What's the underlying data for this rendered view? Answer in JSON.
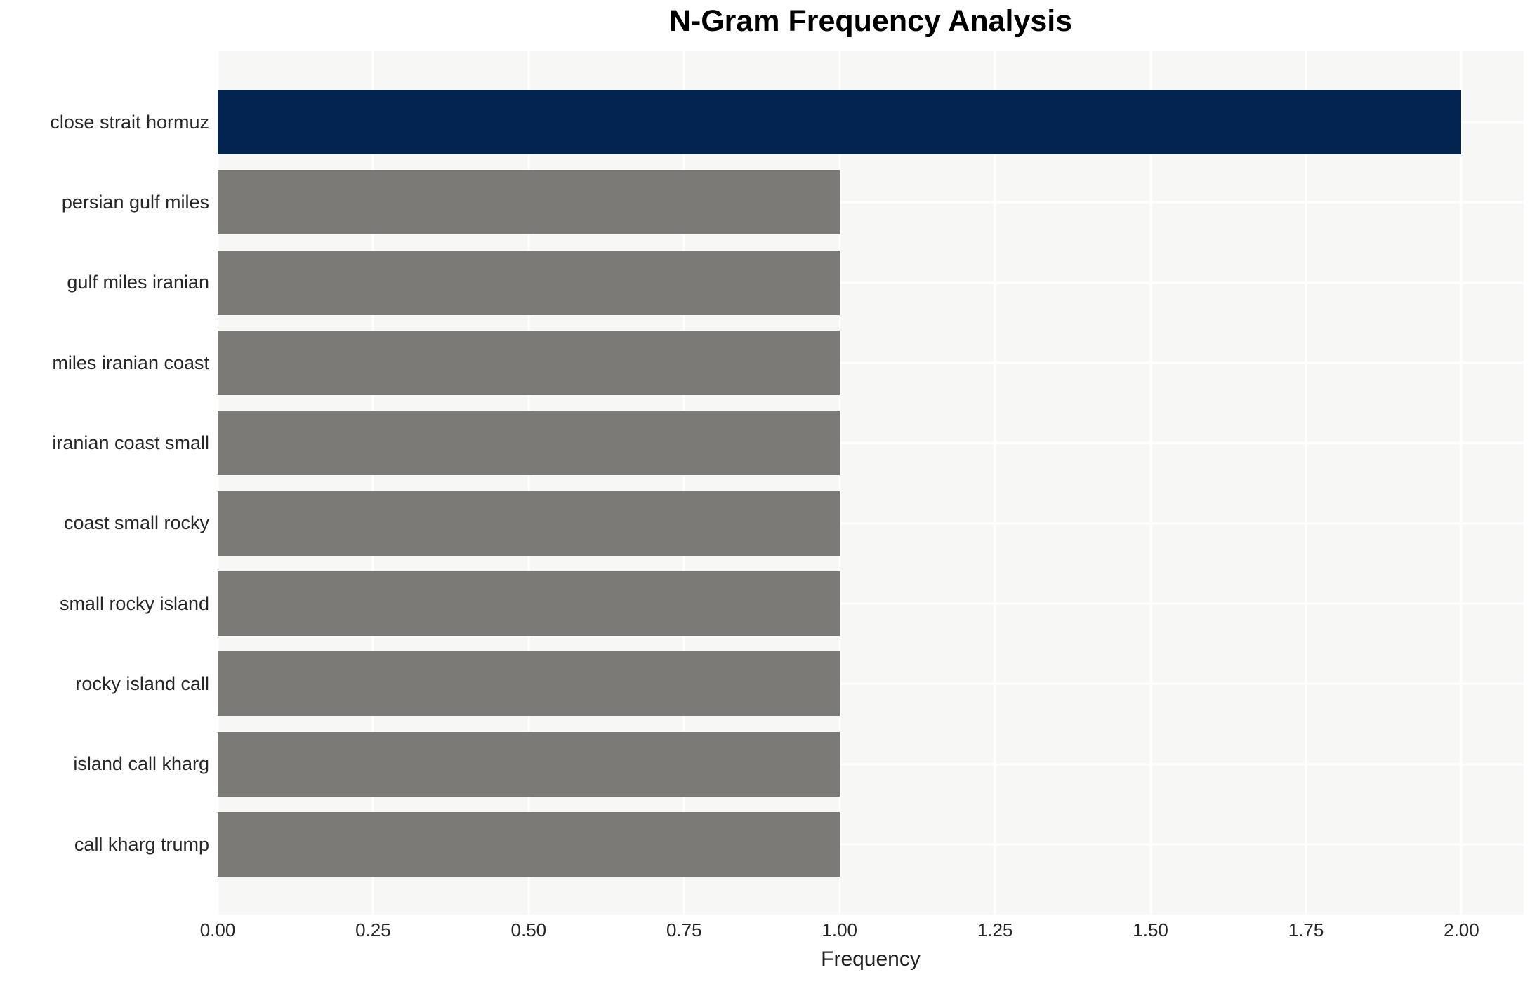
{
  "chart_data": {
    "type": "bar",
    "orientation": "horizontal",
    "title": "N-Gram Frequency Analysis",
    "xlabel": "Frequency",
    "ylabel": "",
    "categories": [
      "close strait hormuz",
      "persian gulf miles",
      "gulf miles iranian",
      "miles iranian coast",
      "iranian coast small",
      "coast small rocky",
      "small rocky island",
      "rocky island call",
      "island call kharg",
      "call kharg trump"
    ],
    "values": [
      2,
      1,
      1,
      1,
      1,
      1,
      1,
      1,
      1,
      1
    ],
    "bar_colors": [
      "#02244e",
      "#7b7a76",
      "#7b7a76",
      "#7b7a76",
      "#7b7a76",
      "#7b7a76",
      "#7b7a76",
      "#7b7a76",
      "#7b7a76",
      "#7b7a76"
    ],
    "xlim": [
      0,
      2.1
    ],
    "x_tick_values": [
      0,
      0.25,
      0.5,
      0.75,
      1.0,
      1.25,
      1.5,
      1.75,
      2.0
    ],
    "x_tick_labels": [
      "0.00",
      "0.25",
      "0.50",
      "0.75",
      "1.00",
      "1.25",
      "1.50",
      "1.75",
      "2.00"
    ],
    "grid": true,
    "legend": false,
    "colors": {
      "highlight_bar": "#02244e",
      "default_bar": "#7b7a76",
      "plot_background": "#f7f7f6",
      "gridline": "#ffffff",
      "tick_text": "#262626",
      "title_text": "#000000"
    }
  }
}
